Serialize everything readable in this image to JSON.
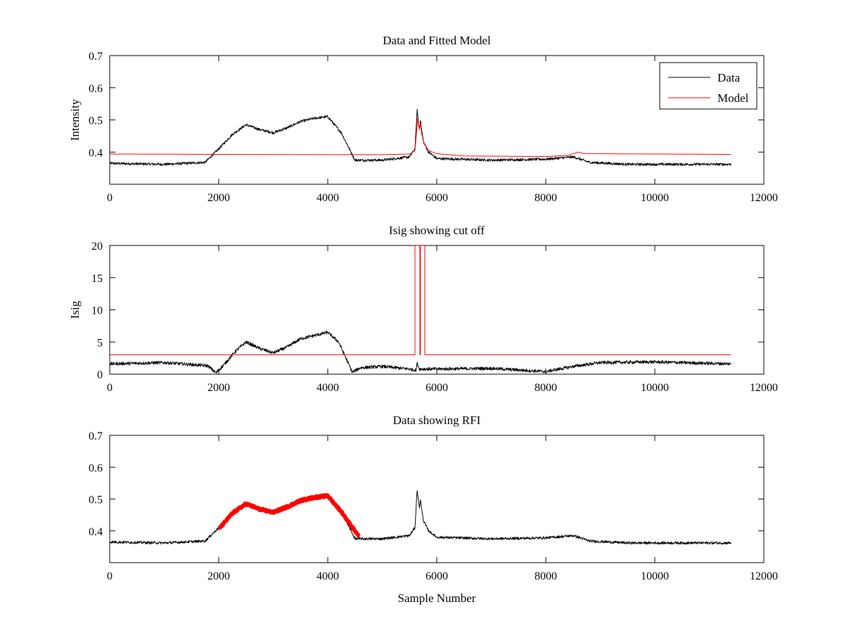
{
  "chart_data": [
    {
      "type": "line",
      "title": "Data and Fitted Model",
      "xlabel": "",
      "ylabel": "Intensity",
      "xlim": [
        0,
        12000
      ],
      "ylim": [
        0.3,
        0.7
      ],
      "xticks": [
        0,
        2000,
        4000,
        6000,
        8000,
        10000,
        12000
      ],
      "yticks": [
        0.4,
        0.5,
        0.6,
        0.7
      ],
      "grid": false,
      "legend": "top-right",
      "series": [
        {
          "name": "Data",
          "color": "#000000",
          "noise": 0.004,
          "x": [
            0,
            1000,
            1750,
            2000,
            2250,
            2500,
            2750,
            3000,
            3250,
            3500,
            3750,
            4000,
            4250,
            4500,
            5000,
            5500,
            5600,
            5640,
            5680,
            5700,
            5720,
            5760,
            5850,
            6000,
            7000,
            8000,
            8500,
            8600,
            8800,
            9500,
            11400
          ],
          "y": [
            0.365,
            0.362,
            0.368,
            0.41,
            0.455,
            0.485,
            0.47,
            0.46,
            0.475,
            0.495,
            0.505,
            0.51,
            0.46,
            0.375,
            0.375,
            0.385,
            0.41,
            0.53,
            0.47,
            0.5,
            0.47,
            0.43,
            0.4,
            0.38,
            0.375,
            0.378,
            0.385,
            0.38,
            0.368,
            0.362,
            0.362
          ]
        },
        {
          "name": "Model",
          "color": "#ff0000",
          "noise": 0,
          "x": [
            0,
            2000,
            4000,
            5000,
            5500,
            5600,
            5650,
            5680,
            5700,
            5720,
            5760,
            5850,
            6000,
            6500,
            8000,
            8400,
            8600,
            8700,
            11400
          ],
          "y": [
            0.394,
            0.393,
            0.392,
            0.392,
            0.394,
            0.405,
            0.505,
            0.47,
            0.49,
            0.46,
            0.43,
            0.405,
            0.395,
            0.388,
            0.386,
            0.39,
            0.4,
            0.395,
            0.393
          ]
        }
      ]
    },
    {
      "type": "line",
      "title": "Isig showing cut off",
      "xlabel": "",
      "ylabel": "Isig",
      "xlim": [
        0,
        12000
      ],
      "ylim": [
        0,
        20
      ],
      "xticks": [
        0,
        2000,
        4000,
        6000,
        8000,
        10000,
        12000
      ],
      "yticks": [
        0,
        5,
        10,
        15,
        20
      ],
      "grid": false,
      "series": [
        {
          "color": "#000000",
          "noise": 0.25,
          "x": [
            0,
            1000,
            1800,
            1950,
            2100,
            2300,
            2500,
            2750,
            3000,
            3250,
            3500,
            3750,
            4000,
            4200,
            4450,
            4600,
            5000,
            5500,
            5620,
            5640,
            5680,
            6000,
            7000,
            8000,
            8500,
            9000,
            10000,
            11400
          ],
          "y": [
            1.6,
            1.8,
            1.3,
            0.2,
            1.5,
            3.5,
            5.0,
            4.0,
            3.3,
            4.2,
            5.5,
            6.0,
            6.5,
            5.0,
            0.3,
            1.0,
            1.2,
            0.8,
            0.6,
            1.8,
            0.8,
            0.8,
            0.9,
            0.4,
            1.2,
            1.8,
            1.9,
            1.6
          ]
        },
        {
          "color": "#ff0000",
          "noise": 0,
          "x": [
            0,
            5600,
            5600,
            5690,
            5690,
            5700,
            5700,
            5780,
            5780,
            11400
          ],
          "y": [
            3.0,
            3.0,
            20,
            20,
            3.0,
            3.0,
            20,
            20,
            3.0,
            3.0
          ]
        }
      ]
    },
    {
      "type": "line",
      "title": "Data showing RFI",
      "xlabel": "Sample Number",
      "ylabel": "",
      "xlim": [
        0,
        12000
      ],
      "ylim": [
        0.3,
        0.7
      ],
      "xticks": [
        0,
        2000,
        4000,
        6000,
        8000,
        10000,
        12000
      ],
      "yticks": [
        0.4,
        0.5,
        0.6,
        0.7
      ],
      "grid": false,
      "series": [
        {
          "color": "#000000",
          "noise": 0.004,
          "x": [
            0,
            1000,
            1750,
            2000,
            2250,
            2500,
            2750,
            3000,
            3250,
            3500,
            3750,
            4000,
            4250,
            4500,
            5000,
            5500,
            5600,
            5640,
            5680,
            5700,
            5720,
            5760,
            5850,
            6000,
            7000,
            8000,
            8500,
            8600,
            8800,
            9500,
            11400
          ],
          "y": [
            0.365,
            0.362,
            0.368,
            0.41,
            0.455,
            0.485,
            0.47,
            0.46,
            0.475,
            0.495,
            0.505,
            0.51,
            0.46,
            0.375,
            0.375,
            0.385,
            0.41,
            0.53,
            0.47,
            0.5,
            0.47,
            0.43,
            0.4,
            0.38,
            0.375,
            0.378,
            0.385,
            0.38,
            0.368,
            0.362,
            0.362
          ]
        },
        {
          "color": "#ff0000",
          "noise": 0.004,
          "marker": "thick",
          "x": [
            2000,
            2250,
            2500,
            2750,
            3000,
            3250,
            3500,
            3750,
            4000,
            4250,
            4580
          ],
          "y": [
            0.405,
            0.455,
            0.485,
            0.468,
            0.458,
            0.475,
            0.495,
            0.505,
            0.51,
            0.46,
            0.38
          ]
        }
      ]
    }
  ]
}
